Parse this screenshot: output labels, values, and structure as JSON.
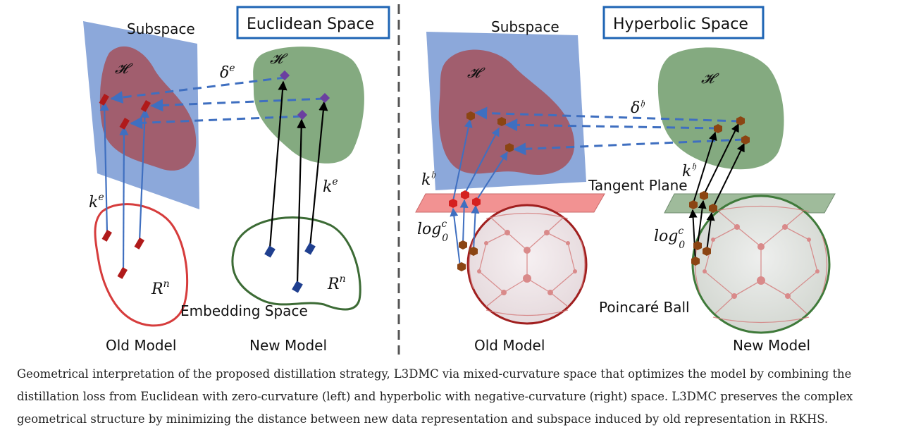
{
  "left_panel": {
    "title": "Euclidean Space",
    "subspace_label": "Subspace",
    "h_symbol_subspace": "𝓗",
    "h_symbol_cloud": "𝓗",
    "delta_label": "δ",
    "delta_sup": "e",
    "k_label_left": "k",
    "k_label_left_sup": "e",
    "k_label_right": "k",
    "k_label_right_sup": "e",
    "rn_left": "R",
    "rn_left_sup": "n",
    "rn_right": "R",
    "rn_right_sup": "n",
    "embedding_label": "Embedding Space",
    "old_model": "Old Model",
    "new_model": "New Model"
  },
  "right_panel": {
    "title": "Hyperbolic Space",
    "subspace_label": "Subspace",
    "h_symbol_subspace": "𝓗",
    "h_symbol_cloud": "𝓗",
    "delta_label": "δ",
    "delta_sup": "𝔥",
    "k_label_left": "k",
    "k_label_left_sup": "𝔥",
    "k_label_right": "k",
    "k_label_right_sup": "𝔥",
    "tangent_label": "Tangent Plane",
    "log_left": "log",
    "log_left_sup": "c",
    "log_left_sub": "0",
    "log_right": "log",
    "log_right_sup": "c",
    "log_right_sub": "0",
    "poincare_label": "Poincaré Ball",
    "old_model": "Old Model",
    "new_model": "New Model"
  },
  "colors": {
    "subspace_blue": "#7f9fd6",
    "old_red": "#a5515b",
    "new_green": "#6f9b6a",
    "arrow_blue": "#3f6fc0",
    "point_red": "#b01a1a",
    "point_purple": "#6b3fa0",
    "point_navy": "#1f3f8f",
    "point_brown": "#8b4513"
  },
  "caption": "Geometrical interpretation of the proposed distillation strategy, L3DMC via mixed-curvature space that optimizes the model by combining the distillation loss from Euclidean with zero-curvature (left) and hyperbolic with negative-curvature (right) space. L3DMC preserves the complex geometrical structure by minimizing the distance between new data representation and subspace induced by old representation in RKHS."
}
